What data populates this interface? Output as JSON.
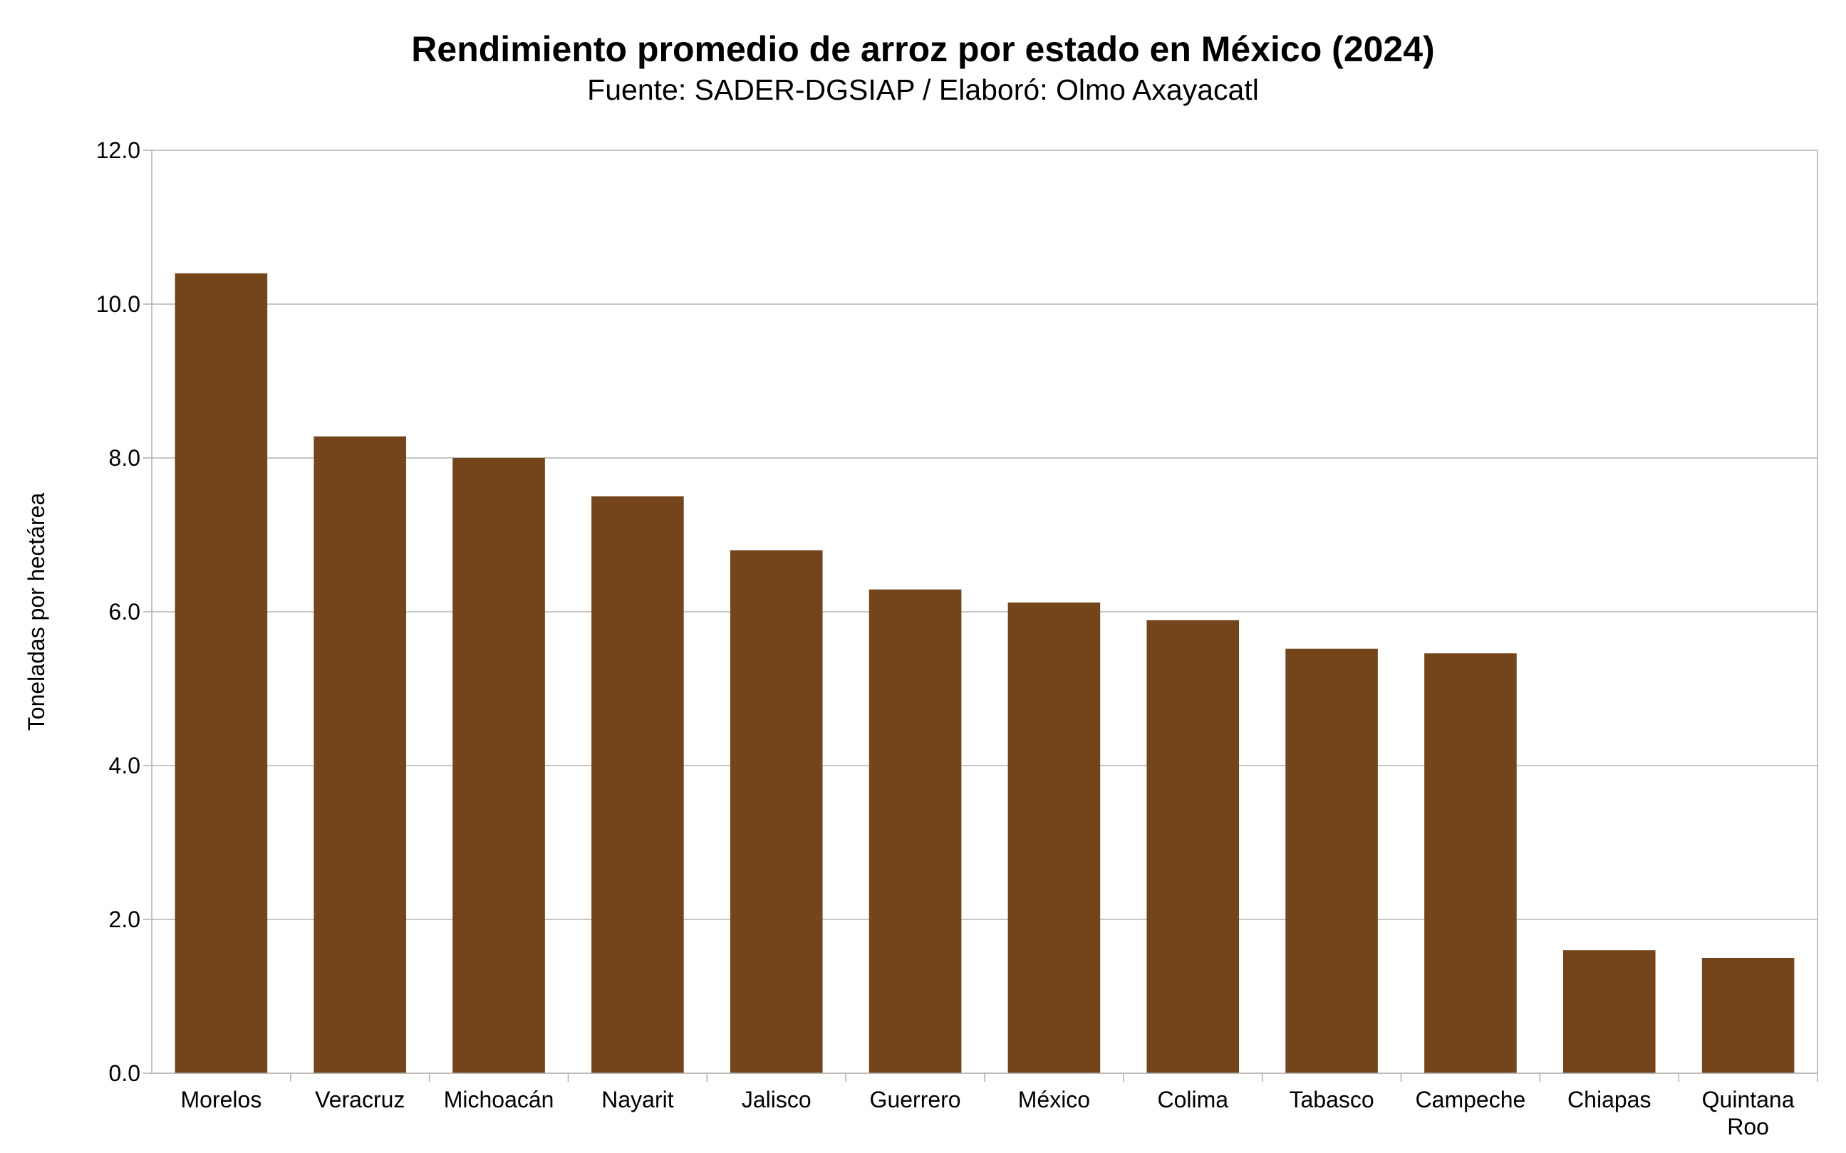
{
  "chart_data": {
    "type": "bar",
    "title": "Rendimiento promedio de arroz por estado en México (2024)",
    "subtitle": "Fuente: SADER-DGSIAP / Elaboró: Olmo Axayacatl",
    "xlabel": "",
    "ylabel": "Toneladas por hectárea",
    "categories": [
      "Morelos",
      "Veracruz",
      "Michoacán",
      "Nayarit",
      "Jalisco",
      "Guerrero",
      "México",
      "Colima",
      "Tabasco",
      "Campeche",
      "Chiapas",
      "Quintana Roo"
    ],
    "values": [
      10.4,
      8.28,
      8.0,
      7.5,
      6.8,
      6.29,
      6.12,
      5.89,
      5.52,
      5.46,
      1.6,
      1.5
    ],
    "ylim": [
      0,
      12
    ],
    "yticks": [
      "0.0",
      "2.0",
      "4.0",
      "6.0",
      "8.0",
      "10.0",
      "12.0"
    ],
    "grid": true,
    "legend": "none",
    "bar_color": "#74451A"
  }
}
